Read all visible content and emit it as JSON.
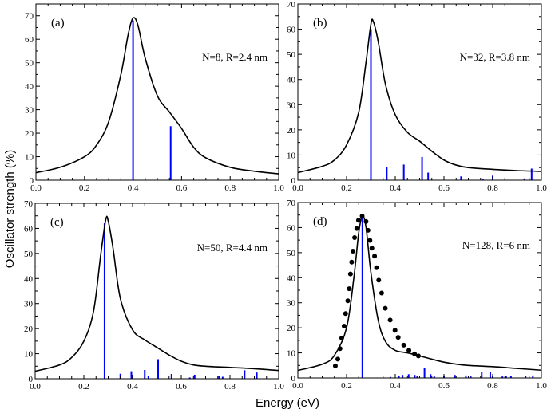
{
  "figure": {
    "ylabel": "Oscillator strength (%)",
    "xlabel": "Energy (eV)"
  },
  "colors": {
    "curve": "#000000",
    "sticks": "#0000ff",
    "dots": "#000000"
  },
  "chart_data": [
    {
      "type": "line",
      "panel_label": "(a)",
      "annotation": "N=8, R=2.4 nm",
      "xlim": [
        0,
        1.0
      ],
      "ylim": [
        0,
        75
      ],
      "xticks": [
        "0.0",
        "0.2",
        "0.4",
        "0.6",
        "0.8",
        "1.0"
      ],
      "yticks": [
        "0",
        "10",
        "20",
        "30",
        "40",
        "50",
        "60",
        "70"
      ],
      "grid": false,
      "curve": {
        "x": [
          0,
          0.1,
          0.2,
          0.25,
          0.3,
          0.35,
          0.38,
          0.4,
          0.42,
          0.45,
          0.5,
          0.55,
          0.6,
          0.65,
          0.7,
          0.8,
          0.9,
          1.0
        ],
        "y": [
          3.2,
          5.5,
          10,
          15,
          25,
          45,
          62,
          69,
          66,
          52,
          36,
          29,
          22,
          14,
          9.5,
          5.5,
          3.8,
          2.7
        ]
      },
      "sticks": {
        "x": [
          0.4,
          0.555
        ],
        "y": [
          68,
          23
        ]
      }
    },
    {
      "type": "line",
      "panel_label": "(b)",
      "annotation": "N=32, R=3.8 nm",
      "xlim": [
        0,
        1.0
      ],
      "ylim": [
        0,
        70
      ],
      "xticks": [
        "0.0",
        "0.2",
        "0.4",
        "0.6",
        "0.8",
        "1.0"
      ],
      "yticks": [
        "0",
        "10",
        "20",
        "30",
        "40",
        "50",
        "60",
        "70"
      ],
      "grid": false,
      "curve": {
        "x": [
          0,
          0.1,
          0.15,
          0.2,
          0.25,
          0.28,
          0.3,
          0.31,
          0.33,
          0.36,
          0.4,
          0.45,
          0.5,
          0.55,
          0.6,
          0.65,
          0.7,
          0.8,
          0.9,
          1.0
        ],
        "y": [
          3,
          5.5,
          8,
          14,
          27,
          47,
          62,
          63,
          55,
          38,
          26,
          19,
          15.5,
          11.5,
          8,
          6,
          5,
          4.3,
          3.8,
          3.5
        ]
      },
      "sticks": {
        "x": [
          0.3,
          0.365,
          0.435,
          0.51,
          0.535,
          0.67,
          0.76,
          0.8,
          0.93,
          0.96
        ],
        "y": [
          60,
          5.2,
          6.2,
          9.2,
          3,
          1.5,
          0.6,
          1.8,
          0.7,
          4.6
        ]
      }
    },
    {
      "type": "line",
      "panel_label": "(c)",
      "annotation": "N=50, R=4.4 nm",
      "xlim": [
        0,
        1.0
      ],
      "ylim": [
        0,
        70
      ],
      "xticks": [
        "0.0",
        "0.2",
        "0.4",
        "0.6",
        "0.8",
        "1.0"
      ],
      "yticks": [
        "0",
        "10",
        "20",
        "30",
        "40",
        "50",
        "60",
        "70"
      ],
      "grid": false,
      "curve": {
        "x": [
          0,
          0.1,
          0.15,
          0.2,
          0.24,
          0.27,
          0.29,
          0.3,
          0.32,
          0.35,
          0.4,
          0.45,
          0.5,
          0.55,
          0.6,
          0.65,
          0.7,
          0.8,
          0.9,
          1.0
        ],
        "y": [
          3,
          5.5,
          8.5,
          15,
          27,
          50,
          63.5,
          63,
          52,
          32,
          19.5,
          15.5,
          12.5,
          9.5,
          7,
          5.5,
          5,
          4.5,
          4,
          3.3
        ]
      },
      "sticks": {
        "x": [
          0.285,
          0.35,
          0.395,
          0.45,
          0.465,
          0.505,
          0.56,
          0.635,
          0.655,
          0.755,
          0.77,
          0.86,
          0.91
        ],
        "y": [
          62,
          2,
          3,
          3.5,
          1,
          7.8,
          1.9,
          0.5,
          1.6,
          1.2,
          0.8,
          3.4,
          2.5
        ]
      }
    },
    {
      "type": "line",
      "panel_label": "(d)",
      "annotation": "N=128, R=6 nm",
      "xlim": [
        0,
        1.0
      ],
      "ylim": [
        0,
        70
      ],
      "xticks": [
        "0.0",
        "0.2",
        "0.4",
        "0.6",
        "0.8",
        "1.0"
      ],
      "yticks": [
        "0",
        "10",
        "20",
        "30",
        "40",
        "50",
        "60",
        "70"
      ],
      "grid": false,
      "curve": {
        "x": [
          0,
          0.1,
          0.15,
          0.2,
          0.23,
          0.25,
          0.265,
          0.28,
          0.3,
          0.33,
          0.36,
          0.4,
          0.45,
          0.5,
          0.55,
          0.6,
          0.65,
          0.7,
          0.8,
          0.9,
          1.0
        ],
        "y": [
          3,
          5.5,
          9,
          20,
          40,
          58,
          64.5,
          60,
          42,
          23,
          14.5,
          11,
          10,
          8.8,
          7.5,
          6.3,
          5.5,
          5,
          4.5,
          3.8,
          3.1
        ]
      },
      "sticks": {
        "x": [
          0.265,
          0.38,
          0.415,
          0.43,
          0.455,
          0.48,
          0.49,
          0.52,
          0.545,
          0.56,
          0.6,
          0.645,
          0.69,
          0.71,
          0.755,
          0.79,
          0.8,
          0.84,
          0.855,
          0.875,
          0.935,
          0.965
        ],
        "y": [
          64,
          0.4,
          0.7,
          1.2,
          1.5,
          1.2,
          0.7,
          4,
          1.5,
          0.6,
          0.8,
          1.2,
          1,
          0.6,
          2.3,
          2.5,
          0.8,
          0.6,
          0.8,
          0.8,
          0.8,
          1
        ]
      },
      "dots": {
        "x": [
          0.154,
          0.164,
          0.173,
          0.18,
          0.19,
          0.196,
          0.205,
          0.211,
          0.216,
          0.221,
          0.226,
          0.233,
          0.242,
          0.249,
          0.264,
          0.28,
          0.288,
          0.296,
          0.304,
          0.315,
          0.323,
          0.332,
          0.344,
          0.359,
          0.379,
          0.399,
          0.412,
          0.435,
          0.456,
          0.479,
          0.495
        ],
        "y": [
          4.8,
          7.5,
          11.7,
          15.9,
          20.7,
          25.7,
          30.8,
          35.6,
          41.5,
          46.2,
          50.6,
          56,
          59.6,
          62.9,
          64.6,
          62.4,
          58.9,
          54.9,
          51.8,
          48.6,
          44,
          39,
          33.9,
          27.8,
          23.1,
          19,
          16.2,
          13.1,
          11,
          9.6,
          8.8
        ]
      }
    }
  ]
}
